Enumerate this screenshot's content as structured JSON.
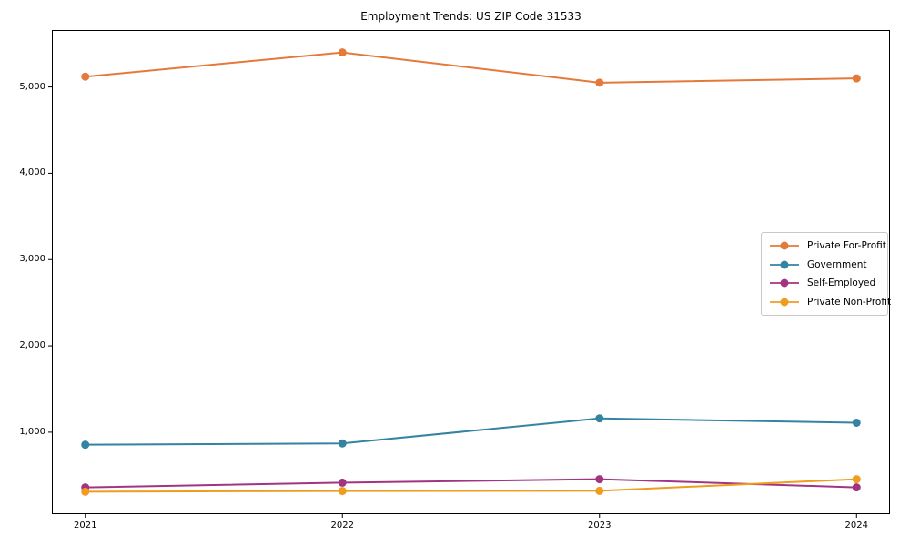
{
  "canvas": {
    "background": "#ffffff",
    "axis_color": "#000000",
    "legend_border_color": "#c8c8c8"
  },
  "chart_data": {
    "type": "line",
    "title": "Employment Trends: US ZIP Code 31533",
    "xlabel": "",
    "ylabel": "",
    "categories": [
      "2021",
      "2022",
      "2023",
      "2024"
    ],
    "series": [
      {
        "name": "Private For-Profit",
        "color": "#e5793a",
        "values": [
          5120,
          5400,
          5050,
          5100
        ]
      },
      {
        "name": "Government",
        "color": "#3483a3",
        "values": [
          855,
          870,
          1160,
          1110
        ]
      },
      {
        "name": "Self-Employed",
        "color": "#a23582",
        "values": [
          360,
          415,
          455,
          360
        ]
      },
      {
        "name": "Private Non-Profit",
        "color": "#f09c1e",
        "values": [
          310,
          318,
          320,
          455
        ]
      }
    ],
    "yticks": [
      1000,
      2000,
      3000,
      4000,
      5000
    ],
    "ytick_labels": [
      "1,000",
      "2,000",
      "3,000",
      "4,000",
      "5,000"
    ],
    "ylim": [
      50,
      5660
    ],
    "x_padding": 0.13,
    "grid": false,
    "legend_position": "center right",
    "marker": "circle",
    "line_width": 2,
    "marker_radius": 4.5
  }
}
